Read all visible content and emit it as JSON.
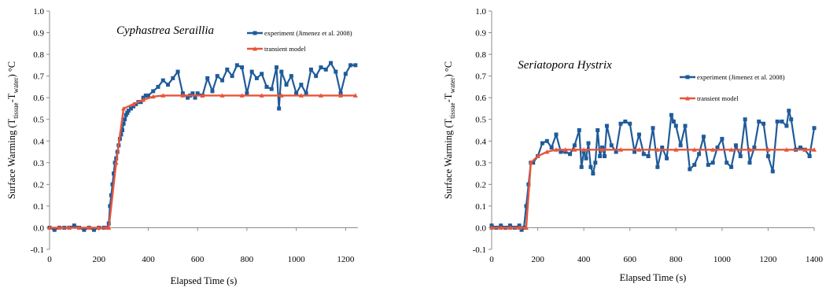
{
  "chart_data": [
    {
      "type": "line",
      "title": "Cyphastrea Seraillia",
      "xlabel": "Elapsed Time (s)",
      "ylabel": {
        "base": "Surface Warming (T",
        "sub1": "tissue",
        "mid": "-T",
        "sub2": "water",
        "end": ")  °C"
      },
      "xlim": [
        0,
        1250
      ],
      "ylim": [
        -0.1,
        1.0
      ],
      "xticks": [
        "0",
        "200",
        "400",
        "600",
        "800",
        "1000",
        "1200"
      ],
      "yticks": [
        "-0.1",
        "0.0",
        "0.1",
        "0.2",
        "0.3",
        "0.4",
        "0.5",
        "0.6",
        "0.7",
        "0.8",
        "0.9",
        "1.0"
      ],
      "legend_position": "top-right",
      "series": [
        {
          "name": "experiment (Jimenez et al. 2008)",
          "color": "#1f5b99",
          "marker": "square",
          "x": [
            0,
            20,
            40,
            60,
            80,
            100,
            120,
            140,
            160,
            180,
            200,
            220,
            235,
            240,
            245,
            250,
            255,
            260,
            265,
            270,
            275,
            280,
            285,
            290,
            295,
            300,
            305,
            310,
            315,
            320,
            330,
            340,
            350,
            360,
            370,
            380,
            390,
            400,
            420,
            440,
            460,
            480,
            500,
            520,
            540,
            560,
            570,
            580,
            590,
            600,
            620,
            640,
            660,
            680,
            700,
            720,
            740,
            760,
            780,
            800,
            820,
            840,
            860,
            880,
            900,
            920,
            930,
            940,
            960,
            980,
            1000,
            1020,
            1040,
            1060,
            1080,
            1100,
            1120,
            1140,
            1160,
            1180,
            1200,
            1220,
            1240
          ],
          "y": [
            0.0,
            -0.01,
            0.0,
            0.0,
            0.0,
            0.01,
            0.0,
            -0.01,
            0.0,
            -0.01,
            0.0,
            0.0,
            0.0,
            0.02,
            0.1,
            0.15,
            0.2,
            0.25,
            0.3,
            0.32,
            0.35,
            0.38,
            0.41,
            0.43,
            0.45,
            0.48,
            0.5,
            0.52,
            0.53,
            0.54,
            0.55,
            0.56,
            0.57,
            0.58,
            0.58,
            0.6,
            0.61,
            0.61,
            0.63,
            0.65,
            0.68,
            0.66,
            0.69,
            0.72,
            0.62,
            0.6,
            0.61,
            0.62,
            0.6,
            0.62,
            0.61,
            0.69,
            0.63,
            0.7,
            0.68,
            0.73,
            0.7,
            0.75,
            0.74,
            0.62,
            0.72,
            0.69,
            0.71,
            0.65,
            0.64,
            0.74,
            0.55,
            0.72,
            0.66,
            0.7,
            0.62,
            0.66,
            0.62,
            0.73,
            0.7,
            0.74,
            0.73,
            0.76,
            0.72,
            0.62,
            0.71,
            0.75,
            0.75
          ]
        },
        {
          "name": "transient model",
          "color": "#e8553a",
          "marker": "triangle",
          "x": [
            0,
            40,
            80,
            120,
            160,
            200,
            230,
            240,
            270,
            300,
            340,
            380,
            420,
            460,
            540,
            620,
            700,
            780,
            860,
            940,
            1020,
            1100,
            1180,
            1240
          ],
          "y": [
            0.0,
            0.0,
            0.0,
            0.0,
            0.0,
            0.0,
            0.0,
            0.0,
            0.3,
            0.55,
            0.57,
            0.59,
            0.605,
            0.61,
            0.61,
            0.61,
            0.61,
            0.61,
            0.61,
            0.61,
            0.61,
            0.61,
            0.61,
            0.61
          ]
        }
      ]
    },
    {
      "type": "line",
      "title": "Seriatopora Hystrix",
      "xlabel": "Elapsed Time (s)",
      "ylabel": {
        "base": "Surface Warming (T",
        "sub1": "tissue",
        "mid": "-T",
        "sub2": "water",
        "end": ")  °C"
      },
      "xlim": [
        0,
        1400
      ],
      "ylim": [
        -0.1,
        1.0
      ],
      "xticks": [
        "0",
        "200",
        "400",
        "600",
        "800",
        "1000",
        "1200",
        "1400"
      ],
      "yticks": [
        "-0.1",
        "0.0",
        "0.1",
        "0.2",
        "0.3",
        "0.4",
        "0.5",
        "0.6",
        "0.7",
        "0.8",
        "0.9",
        "1.0"
      ],
      "legend_position": "right",
      "series": [
        {
          "name": "experiment (Jimenez et al. 2008)",
          "color": "#1f5b99",
          "marker": "square",
          "x": [
            0,
            20,
            40,
            60,
            80,
            100,
            120,
            130,
            140,
            150,
            160,
            170,
            180,
            200,
            220,
            240,
            260,
            280,
            300,
            320,
            340,
            360,
            380,
            390,
            400,
            410,
            420,
            430,
            440,
            450,
            460,
            470,
            480,
            490,
            500,
            520,
            540,
            560,
            580,
            600,
            620,
            640,
            660,
            680,
            700,
            720,
            740,
            760,
            780,
            790,
            800,
            820,
            840,
            860,
            880,
            900,
            920,
            940,
            960,
            980,
            1000,
            1020,
            1040,
            1060,
            1080,
            1100,
            1120,
            1140,
            1160,
            1180,
            1200,
            1220,
            1240,
            1260,
            1280,
            1290,
            1300,
            1320,
            1340,
            1360,
            1380,
            1400
          ],
          "y": [
            0.01,
            0.0,
            0.01,
            0.0,
            0.01,
            0.0,
            0.01,
            -0.01,
            0.0,
            0.1,
            0.2,
            0.3,
            0.3,
            0.33,
            0.39,
            0.4,
            0.37,
            0.43,
            0.35,
            0.35,
            0.34,
            0.38,
            0.45,
            0.28,
            0.35,
            0.32,
            0.39,
            0.28,
            0.25,
            0.3,
            0.45,
            0.33,
            0.37,
            0.33,
            0.47,
            0.38,
            0.35,
            0.48,
            0.49,
            0.48,
            0.35,
            0.43,
            0.34,
            0.33,
            0.46,
            0.28,
            0.37,
            0.32,
            0.52,
            0.49,
            0.47,
            0.38,
            0.47,
            0.27,
            0.29,
            0.34,
            0.42,
            0.29,
            0.3,
            0.37,
            0.41,
            0.3,
            0.28,
            0.38,
            0.33,
            0.5,
            0.3,
            0.37,
            0.49,
            0.48,
            0.33,
            0.26,
            0.49,
            0.49,
            0.47,
            0.54,
            0.5,
            0.36,
            0.37,
            0.36,
            0.33,
            0.46
          ]
        },
        {
          "name": "transient model",
          "color": "#e8553a",
          "marker": "triangle",
          "x": [
            0,
            40,
            80,
            120,
            150,
            170,
            200,
            240,
            280,
            320,
            360,
            400,
            480,
            560,
            640,
            720,
            800,
            880,
            960,
            1040,
            1120,
            1200,
            1280,
            1360,
            1400
          ],
          "y": [
            0.0,
            0.0,
            0.0,
            0.0,
            0.0,
            0.3,
            0.33,
            0.35,
            0.36,
            0.36,
            0.36,
            0.36,
            0.36,
            0.36,
            0.36,
            0.36,
            0.36,
            0.36,
            0.36,
            0.36,
            0.36,
            0.36,
            0.36,
            0.36,
            0.36
          ]
        }
      ]
    }
  ]
}
